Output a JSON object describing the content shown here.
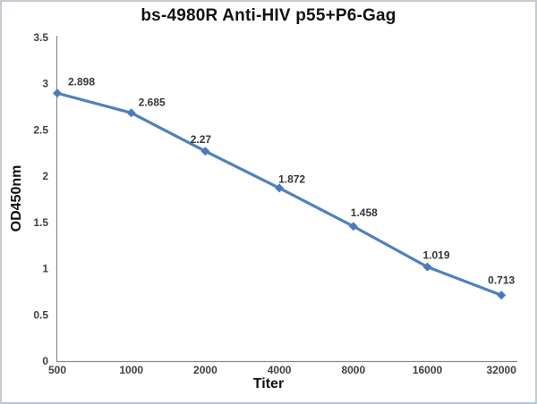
{
  "chart_data": {
    "type": "line",
    "title": "bs-4980R Anti-HIV p55+P6-Gag",
    "xlabel": "Titer",
    "ylabel": "OD450nm",
    "categories": [
      "500",
      "1000",
      "2000",
      "4000",
      "8000",
      "16000",
      "32000"
    ],
    "series": [
      {
        "name": "OD450nm",
        "values": [
          2.898,
          2.685,
          2.27,
          1.872,
          1.458,
          1.019,
          0.713
        ]
      }
    ],
    "point_labels": [
      "2.898",
      "2.685",
      "2.27",
      "1.872",
      "1.458",
      "1.019",
      "0.713"
    ],
    "ylim": [
      0,
      3.5
    ],
    "yticks": [
      "0",
      "0.5",
      "1",
      "1.5",
      "2",
      "2.5",
      "3",
      "3.5"
    ],
    "grid": false,
    "legend": "none",
    "colors": {
      "line": "#4f81bd",
      "marker": "#4a7ab8",
      "axis": "#8a8a8a",
      "tick_text": "#404040",
      "data_label_text": "#363636",
      "title_text": "#111111",
      "frame_border": "#c6cad1"
    }
  }
}
